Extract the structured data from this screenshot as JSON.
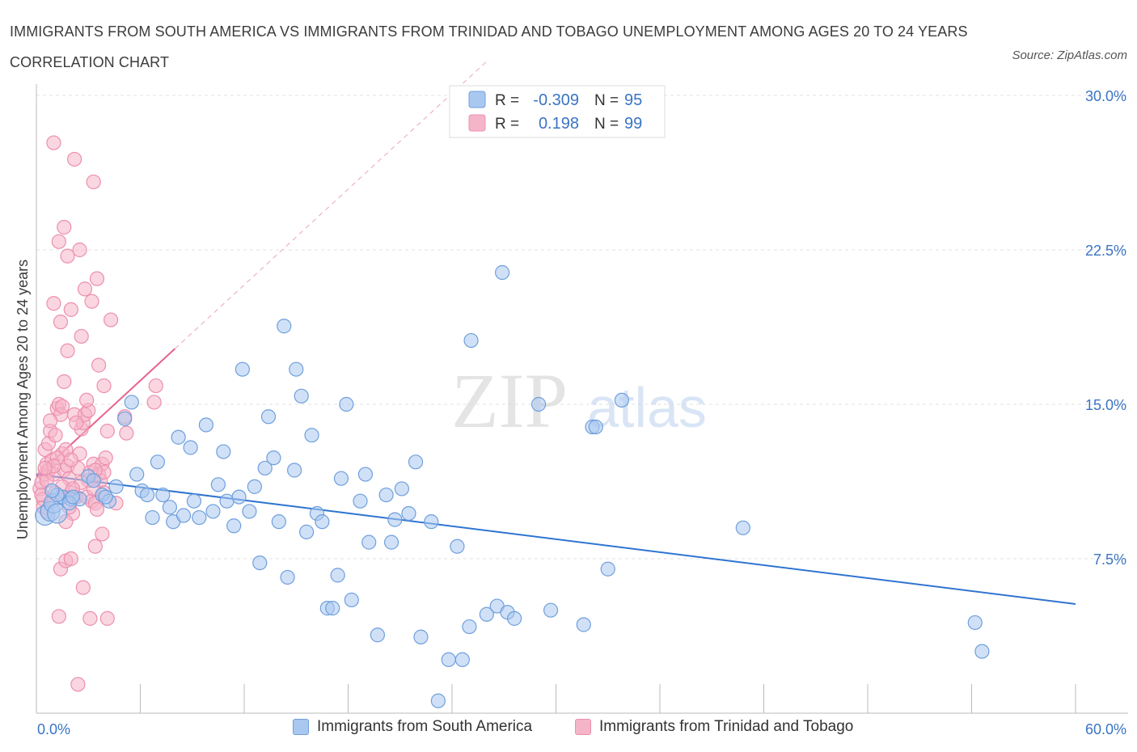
{
  "title": "IMMIGRANTS FROM SOUTH AMERICA VS IMMIGRANTS FROM TRINIDAD AND TOBAGO UNEMPLOYMENT AMONG AGES 20 TO 24 YEARS CORRELATION CHART",
  "source": "Source: ZipAtlas.com",
  "watermark": {
    "zip": "ZIP",
    "atlas": "atlas"
  },
  "colors": {
    "blue_fill": "#a9c8f0",
    "blue_stroke": "#6f9fdc",
    "blue_line": "#2f74d0",
    "pink_fill": "#f5b5c9",
    "pink_stroke": "#ec8fae",
    "pink_line": "#e8628c",
    "axis_label": "#3a74c4",
    "grid": "#dddddd"
  },
  "stats_legend": {
    "rows": [
      {
        "r_label": "R =",
        "r_value": "-0.309",
        "n_label": "N =",
        "n_value": "95",
        "series": "blue"
      },
      {
        "r_label": "R =",
        "r_value": "0.198",
        "n_label": "N =",
        "n_value": "99",
        "series": "pink"
      }
    ]
  },
  "chart_data": {
    "type": "scatter",
    "xlabel": "",
    "ylabel": "Unemployment Among Ages 20 to 24 years",
    "xlim": [
      0,
      60
    ],
    "ylim": [
      0,
      30
    ],
    "x_tick_labels": [
      "0.0%",
      "60.0%"
    ],
    "y_ticks": [
      7.5,
      15.0,
      22.5,
      30.0
    ],
    "y_tick_labels": [
      "7.5%",
      "15.0%",
      "22.5%",
      "30.0%"
    ],
    "grid": "horizontal dashed",
    "legend_position": "bottom",
    "series": [
      {
        "name": "Immigrants from South America",
        "color": "#a9c8f0",
        "trend": {
          "x": [
            0,
            60
          ],
          "y": [
            11.6,
            5.3
          ]
        },
        "points": [
          [
            0.5,
            9.6
          ],
          [
            0.8,
            9.8
          ],
          [
            1.0,
            10.2
          ],
          [
            1.2,
            9.7
          ],
          [
            1.5,
            10.5
          ],
          [
            2.0,
            10.4
          ],
          [
            2.5,
            10.4
          ],
          [
            3.0,
            11.5
          ],
          [
            3.3,
            11.3
          ],
          [
            3.8,
            10.6
          ],
          [
            4.2,
            10.3
          ],
          [
            4.0,
            10.5
          ],
          [
            4.6,
            11.0
          ],
          [
            5.1,
            14.3
          ],
          [
            5.5,
            15.1
          ],
          [
            5.8,
            11.6
          ],
          [
            6.1,
            10.8
          ],
          [
            6.4,
            10.6
          ],
          [
            6.7,
            9.5
          ],
          [
            7.0,
            12.2
          ],
          [
            7.3,
            10.6
          ],
          [
            7.7,
            10.0
          ],
          [
            7.9,
            9.3
          ],
          [
            8.2,
            13.4
          ],
          [
            8.5,
            9.6
          ],
          [
            8.9,
            12.9
          ],
          [
            9.1,
            10.3
          ],
          [
            9.4,
            9.5
          ],
          [
            9.8,
            14.0
          ],
          [
            10.2,
            9.8
          ],
          [
            10.5,
            11.1
          ],
          [
            10.8,
            12.7
          ],
          [
            11.0,
            10.3
          ],
          [
            11.4,
            9.1
          ],
          [
            11.7,
            10.5
          ],
          [
            11.9,
            16.7
          ],
          [
            12.3,
            9.8
          ],
          [
            12.6,
            11.0
          ],
          [
            12.9,
            7.3
          ],
          [
            13.2,
            11.9
          ],
          [
            13.4,
            14.4
          ],
          [
            13.7,
            12.4
          ],
          [
            14.0,
            9.3
          ],
          [
            14.3,
            18.8
          ],
          [
            14.5,
            6.6
          ],
          [
            14.9,
            11.8
          ],
          [
            15.0,
            16.7
          ],
          [
            15.3,
            15.4
          ],
          [
            15.6,
            8.8
          ],
          [
            15.9,
            13.5
          ],
          [
            16.2,
            9.7
          ],
          [
            16.5,
            9.3
          ],
          [
            16.8,
            5.1
          ],
          [
            17.1,
            5.1
          ],
          [
            17.4,
            6.7
          ],
          [
            17.6,
            11.4
          ],
          [
            17.9,
            15.0
          ],
          [
            18.2,
            5.5
          ],
          [
            18.7,
            10.3
          ],
          [
            19.0,
            11.6
          ],
          [
            19.2,
            8.3
          ],
          [
            19.7,
            3.8
          ],
          [
            20.2,
            10.6
          ],
          [
            20.5,
            8.3
          ],
          [
            20.7,
            9.4
          ],
          [
            21.1,
            10.9
          ],
          [
            21.5,
            9.7
          ],
          [
            21.9,
            12.2
          ],
          [
            22.2,
            3.7
          ],
          [
            22.8,
            9.3
          ],
          [
            23.2,
            0.6
          ],
          [
            23.8,
            2.6
          ],
          [
            24.3,
            8.1
          ],
          [
            24.6,
            2.6
          ],
          [
            25.0,
            4.2
          ],
          [
            26.0,
            4.8
          ],
          [
            26.6,
            5.2
          ],
          [
            27.2,
            4.9
          ],
          [
            27.6,
            4.6
          ],
          [
            26.9,
            21.4
          ],
          [
            29.0,
            15.0
          ],
          [
            29.7,
            5.0
          ],
          [
            31.6,
            4.3
          ],
          [
            32.1,
            13.9
          ],
          [
            32.3,
            13.9
          ],
          [
            33.0,
            7.0
          ],
          [
            33.8,
            15.2
          ],
          [
            25.1,
            18.1
          ],
          [
            40.8,
            9.0
          ],
          [
            54.2,
            4.4
          ],
          [
            54.6,
            3.0
          ],
          [
            1.2,
            10.6
          ],
          [
            1.9,
            10.2
          ],
          [
            0.9,
            10.8
          ],
          [
            2.1,
            10.5
          ]
        ]
      },
      {
        "name": "Immigrants from Trinidad and Tobago",
        "color": "#f5b5c9",
        "trend": {
          "x": [
            0,
            8
          ],
          "y": [
            11.5,
            17.7
          ]
        },
        "points": [
          [
            0.2,
            10.9
          ],
          [
            0.3,
            11.2
          ],
          [
            0.4,
            10.4
          ],
          [
            0.5,
            11.6
          ],
          [
            0.6,
            12.1
          ],
          [
            0.7,
            11.8
          ],
          [
            0.8,
            13.7
          ],
          [
            0.9,
            12.3
          ],
          [
            1.0,
            11.6
          ],
          [
            1.1,
            10.7
          ],
          [
            1.2,
            14.8
          ],
          [
            1.3,
            15.0
          ],
          [
            1.4,
            14.5
          ],
          [
            1.5,
            12.6
          ],
          [
            1.6,
            11.8
          ],
          [
            1.7,
            12.8
          ],
          [
            1.8,
            12.0
          ],
          [
            1.9,
            11.4
          ],
          [
            2.0,
            10.7
          ],
          [
            2.1,
            9.7
          ],
          [
            2.2,
            14.5
          ],
          [
            2.3,
            10.5
          ],
          [
            2.4,
            11.9
          ],
          [
            2.5,
            12.6
          ],
          [
            2.6,
            13.8
          ],
          [
            2.7,
            14.1
          ],
          [
            2.8,
            14.5
          ],
          [
            2.9,
            10.5
          ],
          [
            3.0,
            11.3
          ],
          [
            3.1,
            11.7
          ],
          [
            3.2,
            10.3
          ],
          [
            3.3,
            12.1
          ],
          [
            3.4,
            10.2
          ],
          [
            3.5,
            9.9
          ],
          [
            3.6,
            11.6
          ],
          [
            3.7,
            11.3
          ],
          [
            3.8,
            12.1
          ],
          [
            3.9,
            11.7
          ],
          [
            4.0,
            12.4
          ],
          [
            4.1,
            13.7
          ],
          [
            1.0,
            19.9
          ],
          [
            1.3,
            22.9
          ],
          [
            1.6,
            23.6
          ],
          [
            1.8,
            22.2
          ],
          [
            2.0,
            19.6
          ],
          [
            2.2,
            26.9
          ],
          [
            2.5,
            22.5
          ],
          [
            2.8,
            20.6
          ],
          [
            3.3,
            25.8
          ],
          [
            3.5,
            21.1
          ],
          [
            1.4,
            19.0
          ],
          [
            2.6,
            18.3
          ],
          [
            4.3,
            19.1
          ],
          [
            3.6,
            16.9
          ],
          [
            1.6,
            16.1
          ],
          [
            3.9,
            15.9
          ],
          [
            6.9,
            15.9
          ],
          [
            6.8,
            15.1
          ],
          [
            5.1,
            14.4
          ],
          [
            5.2,
            13.6
          ],
          [
            1.4,
            7.0
          ],
          [
            1.7,
            7.4
          ],
          [
            2.0,
            7.5
          ],
          [
            2.7,
            6.1
          ],
          [
            3.8,
            8.7
          ],
          [
            3.4,
            8.1
          ],
          [
            1.3,
            4.7
          ],
          [
            3.1,
            4.6
          ],
          [
            4.1,
            4.6
          ],
          [
            2.4,
            1.4
          ],
          [
            0.5,
            12.8
          ],
          [
            0.7,
            13.1
          ],
          [
            1.1,
            13.5
          ],
          [
            0.4,
            10.0
          ],
          [
            0.6,
            9.8
          ],
          [
            0.9,
            10.3
          ],
          [
            1.5,
            11.0
          ],
          [
            2.0,
            12.3
          ],
          [
            1.2,
            12.4
          ],
          [
            0.8,
            14.2
          ],
          [
            1.5,
            14.9
          ],
          [
            2.3,
            14.1
          ],
          [
            0.3,
            10.6
          ],
          [
            0.6,
            11.3
          ],
          [
            1.0,
            12.0
          ],
          [
            1.9,
            10.0
          ],
          [
            2.6,
            11.2
          ],
          [
            3.3,
            10.9
          ],
          [
            1.7,
            9.3
          ],
          [
            2.1,
            10.9
          ],
          [
            0.5,
            11.9
          ],
          [
            3.0,
            14.7
          ],
          [
            1.0,
            27.7
          ],
          [
            3.2,
            20.0
          ],
          [
            3.9,
            10.7
          ],
          [
            4.6,
            10.2
          ],
          [
            1.8,
            17.6
          ],
          [
            2.9,
            15.2
          ],
          [
            3.4,
            11.8
          ]
        ]
      }
    ]
  }
}
